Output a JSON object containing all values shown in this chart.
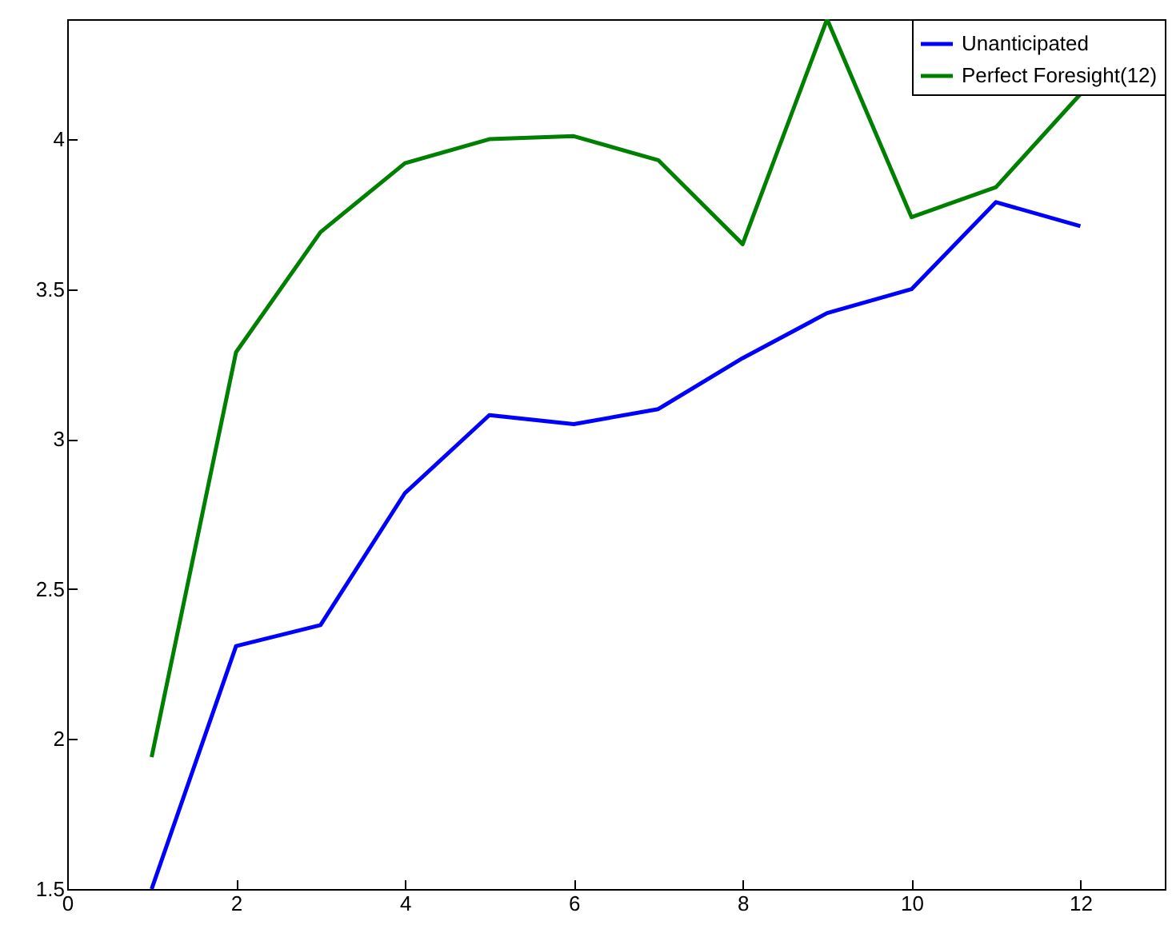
{
  "chart_data": {
    "type": "line",
    "x": [
      1,
      2,
      3,
      4,
      5,
      6,
      7,
      8,
      9,
      10,
      11,
      12
    ],
    "series": [
      {
        "name": "Unanticipated",
        "color": "#0000ff",
        "values": [
          1.5,
          2.31,
          2.38,
          2.82,
          3.08,
          3.05,
          3.1,
          3.27,
          3.42,
          3.5,
          3.79,
          3.71
        ]
      },
      {
        "name": "Perfect Foresight(12)",
        "color": "#008000",
        "values": [
          1.94,
          3.29,
          3.69,
          3.92,
          4.0,
          4.01,
          3.93,
          3.65,
          4.4,
          3.74,
          3.84,
          4.15
        ]
      }
    ],
    "xlim": [
      0,
      13
    ],
    "xticks": [
      0,
      2,
      4,
      6,
      8,
      10,
      12
    ],
    "ylim": [
      1.5,
      4.4
    ],
    "yticks": [
      1.5,
      2,
      2.5,
      3,
      3.5,
      4
    ],
    "grid": false,
    "legend": "top right",
    "marker": "none",
    "line_style": "solid"
  }
}
